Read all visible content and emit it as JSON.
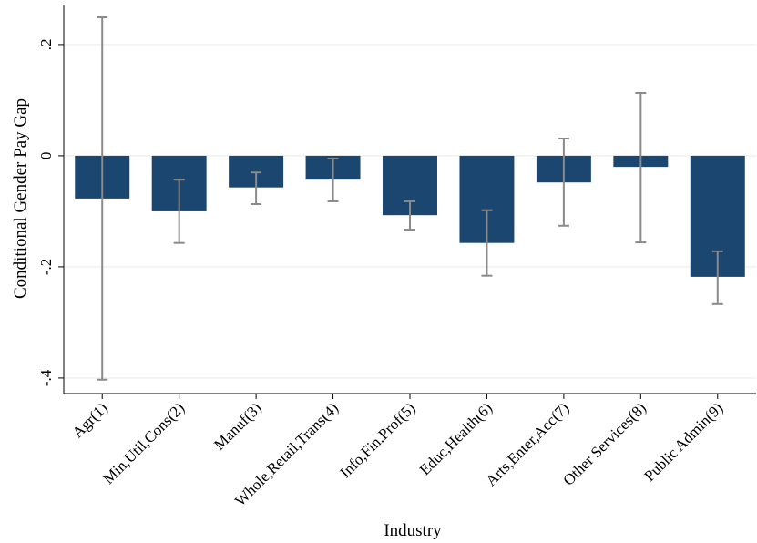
{
  "chart_data": {
    "type": "bar",
    "x_label": "Industry",
    "y_label": "Conditional Gender Pay Gap",
    "categories": [
      "Agr(1)",
      "Min,Util,Cons(2)",
      "Manuf(3)",
      "Whole,Retail,Trans(4)",
      "Info,Fin,Prof(5)",
      "Educ,Health(6)",
      "Arts,Enter,Acc(7)",
      "Other Services(8)",
      "Public Admin(9)"
    ],
    "values": [
      -0.077,
      -0.1,
      -0.057,
      -0.043,
      -0.107,
      -0.157,
      -0.048,
      -0.02,
      -0.218
    ],
    "upper": [
      0.249,
      -0.043,
      -0.03,
      -0.005,
      -0.082,
      -0.098,
      0.031,
      0.113,
      -0.172
    ],
    "lower": [
      -0.403,
      -0.157,
      -0.087,
      -0.082,
      -0.133,
      -0.216,
      -0.126,
      -0.156,
      -0.267
    ],
    "color": "#1a4670",
    "error_color": "#8a8a8a",
    "ylim": [
      -0.428,
      0.272
    ],
    "yticks": [
      {
        "value": -0.4,
        "label": "-.4"
      },
      {
        "value": -0.2,
        "label": "-.2"
      },
      0,
      {
        "value": 0.2,
        "label": ".2"
      }
    ],
    "grid": true
  }
}
